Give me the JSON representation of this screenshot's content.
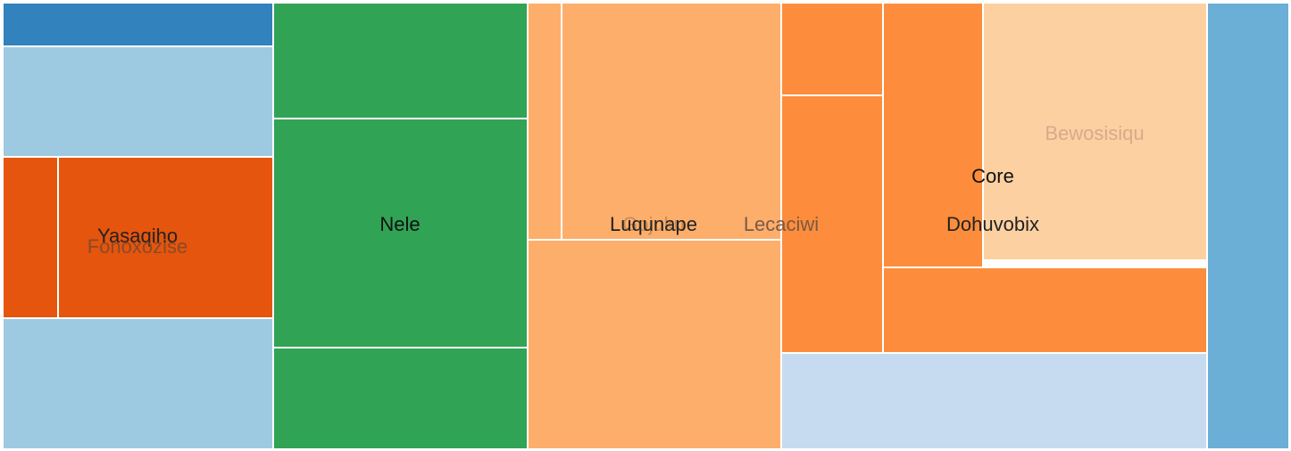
{
  "chart_data": {
    "type": "treemap",
    "colors": {
      "dark_blue": "#3182bd",
      "mid_blue": "#6baed6",
      "light_blue": "#9ecae1",
      "pale_blue": "#c6dbef",
      "dark_orange": "#e6550d",
      "mid_orange": "#fd8d3c",
      "light_orange": "#fdae6b",
      "pale_orange": "#fdd0a2",
      "green": "#31a354"
    },
    "labels": [
      {
        "text": "Yasaqiho",
        "color": "#222222"
      },
      {
        "text": "Fonoxozise",
        "color": "#8a4a2a"
      },
      {
        "text": "Nele",
        "color": "#111111"
      },
      {
        "text": "Luqunape",
        "color": "#222222"
      },
      {
        "text": "Gojuku",
        "color": "#c98a55"
      },
      {
        "text": "Lecaciwi",
        "color": "#7a5a44"
      },
      {
        "text": "Core",
        "color": "#111111"
      },
      {
        "text": "Dohuvobix",
        "color": "#222222"
      },
      {
        "text": "Bewosisiqu",
        "color": "#d9a98a"
      }
    ]
  }
}
